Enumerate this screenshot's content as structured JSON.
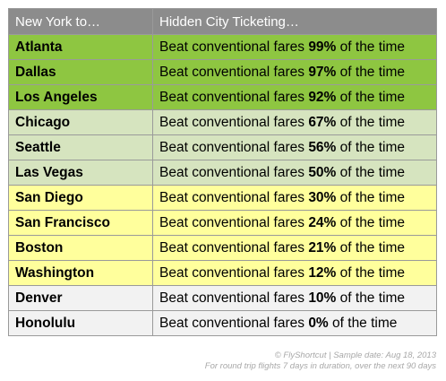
{
  "table": {
    "headers": [
      "New York to…",
      "Hidden City Ticketing…"
    ],
    "rows": [
      {
        "city": "Atlanta",
        "text_before": "Beat conventional fares ",
        "pct": "99%",
        "text_after": " of the time",
        "color": "#8ec641"
      },
      {
        "city": "Dallas",
        "text_before": "Beat conventional fares ",
        "pct": "97%",
        "text_after": " of the time",
        "color": "#8ec641"
      },
      {
        "city": "Los Angeles",
        "text_before": "Beat conventional fares ",
        "pct": "92%",
        "text_after": " of the time",
        "color": "#8ec641"
      },
      {
        "city": "Chicago",
        "text_before": "Beat conventional fares ",
        "pct": "67%",
        "text_after": " of the time",
        "color": "#d6e4bf"
      },
      {
        "city": "Seattle",
        "text_before": "Beat conventional fares ",
        "pct": "56%",
        "text_after": " of the time",
        "color": "#d6e4bf"
      },
      {
        "city": "Las Vegas",
        "text_before": "Beat conventional fares ",
        "pct": "50%",
        "text_after": " of the time",
        "color": "#d6e4bf"
      },
      {
        "city": "San Diego",
        "text_before": "Beat conventional fares ",
        "pct": "30%",
        "text_after": " of the time",
        "color": "#ffff9c"
      },
      {
        "city": "San Francisco",
        "text_before": "Beat conventional fares ",
        "pct": "24%",
        "text_after": " of the time",
        "color": "#ffff9c"
      },
      {
        "city": "Boston",
        "text_before": "Beat conventional fares ",
        "pct": "21%",
        "text_after": " of the time",
        "color": "#ffff9c"
      },
      {
        "city": "Washington",
        "text_before": "Beat conventional fares ",
        "pct": "12%",
        "text_after": " of the time",
        "color": "#ffff9c"
      },
      {
        "city": "Denver",
        "text_before": "Beat conventional fares ",
        "pct": "10%",
        "text_after": " of the time",
        "color": "#f2f2f2"
      },
      {
        "city": "Honolulu",
        "text_before": "Beat conventional fares ",
        "pct": "0%",
        "text_after": " of the time",
        "color": "#f2f2f2"
      }
    ]
  },
  "footer": {
    "line1": "© FlyShortcut  |  Sample date: Aug 18, 2013",
    "line2": "For round trip flights 7 days in duration, over the next 90 days"
  }
}
